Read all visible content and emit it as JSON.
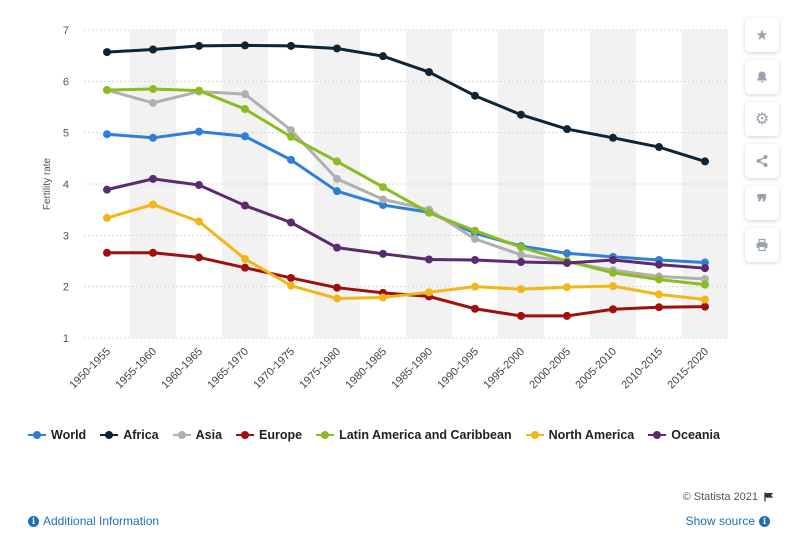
{
  "chart_data": {
    "type": "line",
    "ylabel": "Fertility rate",
    "ylim": [
      1,
      7
    ],
    "yticks": [
      1,
      2,
      3,
      4,
      5,
      6,
      7
    ],
    "grid": true,
    "legend_position": "bottom",
    "categories": [
      "1950-1955",
      "1955-1960",
      "1960-1965",
      "1965-1970",
      "1970-1975",
      "1975-1980",
      "1980-1985",
      "1985-1990",
      "1990-1995",
      "1995-2000",
      "2000-2005",
      "2005-2010",
      "2010-2015",
      "2015-2020"
    ],
    "series": [
      {
        "name": "World",
        "color": "#2f7ed8",
        "values": [
          4.97,
          4.9,
          5.02,
          4.93,
          4.47,
          3.86,
          3.59,
          3.45,
          3.04,
          2.79,
          2.65,
          2.58,
          2.52,
          2.47
        ]
      },
      {
        "name": "Africa",
        "color": "#0d2537",
        "values": [
          6.57,
          6.62,
          6.69,
          6.7,
          6.69,
          6.64,
          6.49,
          6.18,
          5.72,
          5.35,
          5.07,
          4.9,
          4.72,
          4.44
        ]
      },
      {
        "name": "Asia",
        "color": "#b0b0b0",
        "values": [
          5.83,
          5.58,
          5.8,
          5.75,
          5.05,
          4.1,
          3.7,
          3.5,
          2.93,
          2.62,
          2.48,
          2.32,
          2.2,
          2.15
        ]
      },
      {
        "name": "Europe",
        "color": "#a10e0e",
        "values": [
          2.66,
          2.66,
          2.57,
          2.37,
          2.17,
          1.98,
          1.88,
          1.81,
          1.57,
          1.43,
          1.43,
          1.56,
          1.6,
          1.61
        ]
      },
      {
        "name": "Latin America and Caribbean",
        "color": "#8bbc21",
        "values": [
          5.83,
          5.85,
          5.82,
          5.46,
          4.92,
          4.44,
          3.94,
          3.44,
          3.09,
          2.77,
          2.5,
          2.27,
          2.14,
          2.04
        ]
      },
      {
        "name": "North America",
        "color": "#f2b619",
        "values": [
          3.34,
          3.6,
          3.27,
          2.54,
          2.02,
          1.77,
          1.79,
          1.89,
          2.0,
          1.95,
          1.99,
          2.01,
          1.85,
          1.75
        ]
      },
      {
        "name": "Oceania",
        "color": "#5c2a6e",
        "values": [
          3.89,
          4.1,
          3.98,
          3.58,
          3.25,
          2.76,
          2.64,
          2.53,
          2.52,
          2.48,
          2.46,
          2.52,
          2.43,
          2.36
        ]
      }
    ]
  },
  "toolbar": {
    "items": [
      {
        "name": "star-icon",
        "glyph": "★"
      },
      {
        "name": "bell-icon",
        "glyph": "bell"
      },
      {
        "name": "gear-icon",
        "glyph": "⚙"
      },
      {
        "name": "share-icon",
        "glyph": "share"
      },
      {
        "name": "quote-icon",
        "glyph": "❞"
      },
      {
        "name": "print-icon",
        "glyph": "print"
      }
    ]
  },
  "footer": {
    "additional_info": "Additional Information",
    "show_source": "Show source",
    "credit": "© Statista 2021"
  }
}
